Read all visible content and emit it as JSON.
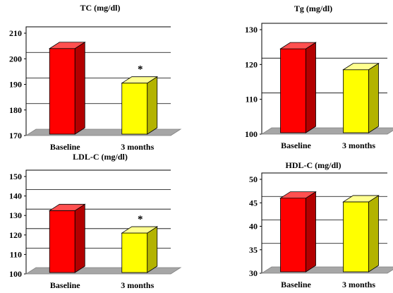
{
  "chart_data": [
    {
      "type": "bar",
      "title": "TC (mg/dl)",
      "categories": [
        "Baseline",
        "3 months"
      ],
      "values": [
        204,
        190.5
      ],
      "ylim": [
        170,
        210
      ],
      "yticks": [
        "170",
        "180",
        "190",
        "200",
        "210"
      ],
      "annotations": [
        {
          "category": "3 months",
          "text": "*"
        }
      ],
      "colors": [
        "#ff0000",
        "#ffff00"
      ],
      "grid": true
    },
    {
      "type": "bar",
      "title": "Tg (mg/dl)",
      "categories": [
        "Baseline",
        "3 months"
      ],
      "values": [
        124.5,
        118.5
      ],
      "ylim": [
        100,
        130
      ],
      "yticks": [
        "100",
        "110",
        "120",
        "130"
      ],
      "annotations": [],
      "colors": [
        "#ff0000",
        "#ffff00"
      ],
      "grid": true
    },
    {
      "type": "bar",
      "title": "LDL-C (mg/dl)",
      "categories": [
        "Baseline",
        "3 months"
      ],
      "values": [
        132.5,
        121
      ],
      "ylim": [
        100,
        150
      ],
      "yticks": [
        "100",
        "110",
        "120",
        "130",
        "140",
        "150"
      ],
      "annotations": [
        {
          "category": "3 months",
          "text": "*"
        }
      ],
      "colors": [
        "#ff0000",
        "#ffff00"
      ],
      "grid": true
    },
    {
      "type": "bar",
      "title": "HDL-C (mg/dl)",
      "categories": [
        "Baseline",
        "3 months"
      ],
      "values": [
        46,
        45.2
      ],
      "ylim": [
        30,
        50
      ],
      "yticks": [
        "30",
        "35",
        "40",
        "45",
        "50"
      ],
      "annotations": [],
      "colors": [
        "#ff0000",
        "#ffff00"
      ],
      "grid": true
    }
  ]
}
